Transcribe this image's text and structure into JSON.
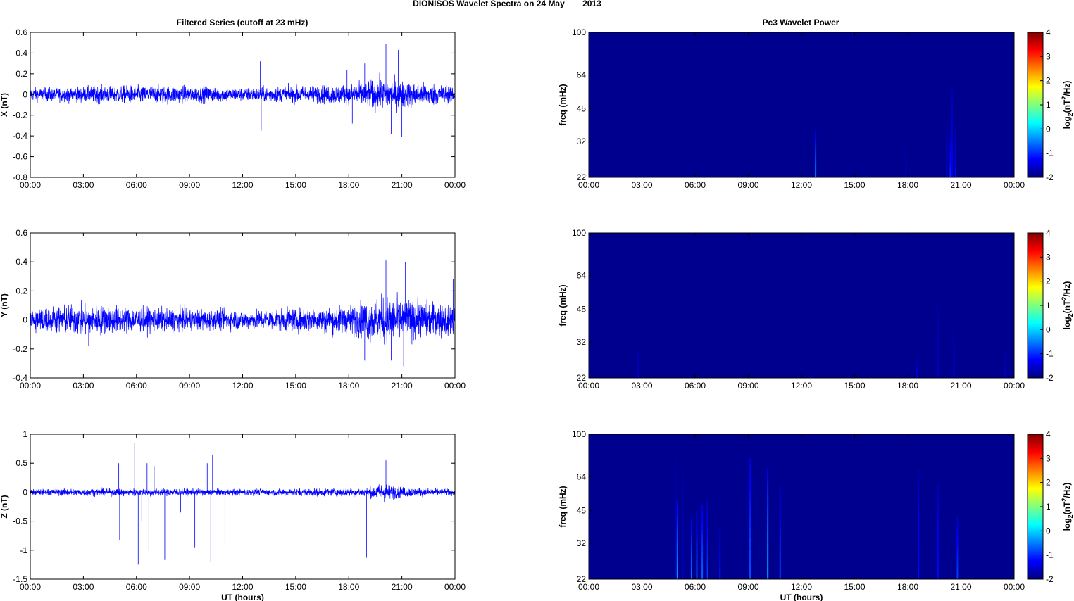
{
  "figure": {
    "title_prefix": "DIONISOS Wavelet Spectra on 24 May",
    "title_year": "2013",
    "left_column_title": "Filtered Series (cutoff at 23 mHz)",
    "right_column_title": "Pc3 Wavelet Power"
  },
  "colors": {
    "series": "#0000ff",
    "spectrum_background": "#00008f",
    "colormap": [
      "#00007f",
      "#0000ff",
      "#007fff",
      "#00ffff",
      "#7fff7f",
      "#ffff00",
      "#ff7f00",
      "#ff0000",
      "#7f0000"
    ]
  },
  "chart_data": [
    {
      "type": "line",
      "title": "Filtered Series (cutoff at 23 mHz)",
      "xlabel": "",
      "ylabel": "X (nT)",
      "x_ticks": [
        "00:00",
        "03:00",
        "06:00",
        "09:00",
        "12:00",
        "15:00",
        "18:00",
        "21:00",
        "00:00"
      ],
      "xlim_hours": [
        0,
        24
      ],
      "ylim": [
        -0.8,
        0.6
      ],
      "y_ticks": [
        "0.6",
        "0.4",
        "0.2",
        "0",
        "-0.2",
        "-0.4",
        "-0.6",
        "-0.8"
      ],
      "noise_envelope": [
        [
          0,
          0.06
        ],
        [
          6,
          0.08
        ],
        [
          8,
          0.08
        ],
        [
          12,
          0.06
        ],
        [
          18,
          0.09
        ],
        [
          20,
          0.15
        ],
        [
          21,
          0.12
        ],
        [
          24,
          0.08
        ]
      ],
      "spikes": [
        [
          13.0,
          0.32
        ],
        [
          13.05,
          -0.35
        ],
        [
          18.9,
          0.3
        ],
        [
          20.1,
          0.49
        ],
        [
          20.4,
          -0.38
        ],
        [
          21.0,
          -0.41
        ],
        [
          17.9,
          0.24
        ],
        [
          20.8,
          0.43
        ],
        [
          18.2,
          -0.28
        ]
      ]
    },
    {
      "type": "line",
      "xlabel": "",
      "ylabel": "Y (nT)",
      "x_ticks": [
        "00:00",
        "03:00",
        "06:00",
        "09:00",
        "12:00",
        "15:00",
        "18:00",
        "21:00",
        "00:00"
      ],
      "xlim_hours": [
        0,
        24
      ],
      "ylim": [
        -0.4,
        0.6
      ],
      "y_ticks": [
        "0.6",
        "0.4",
        "0.2",
        "0",
        "-0.2",
        "-0.4"
      ],
      "noise_envelope": [
        [
          0,
          0.08
        ],
        [
          3,
          0.1
        ],
        [
          6,
          0.08
        ],
        [
          12,
          0.06
        ],
        [
          18,
          0.09
        ],
        [
          20,
          0.15
        ],
        [
          21,
          0.13
        ],
        [
          24,
          0.1
        ]
      ],
      "spikes": [
        [
          20.1,
          0.41
        ],
        [
          21.2,
          0.4
        ],
        [
          20.4,
          -0.28
        ],
        [
          21.1,
          -0.32
        ],
        [
          18.9,
          -0.28
        ],
        [
          23.9,
          0.28
        ],
        [
          3.3,
          -0.18
        ]
      ]
    },
    {
      "type": "line",
      "xlabel": "UT (hours)",
      "ylabel": "Z (nT)",
      "x_ticks": [
        "00:00",
        "03:00",
        "06:00",
        "09:00",
        "12:00",
        "15:00",
        "18:00",
        "21:00",
        "00:00"
      ],
      "xlim_hours": [
        0,
        24
      ],
      "ylim": [
        -1.5,
        1
      ],
      "y_ticks": [
        "1",
        "0.5",
        "0",
        "-0.5",
        "-1",
        "-1.5"
      ],
      "noise_envelope": [
        [
          0,
          0.05
        ],
        [
          5,
          0.06
        ],
        [
          12,
          0.05
        ],
        [
          19,
          0.07
        ],
        [
          20,
          0.15
        ],
        [
          21,
          0.08
        ],
        [
          24,
          0.05
        ]
      ],
      "spikes": [
        [
          5.0,
          0.5
        ],
        [
          5.05,
          -0.82
        ],
        [
          5.9,
          0.85
        ],
        [
          6.1,
          -1.25
        ],
        [
          6.3,
          -0.5
        ],
        [
          6.6,
          0.5
        ],
        [
          6.7,
          -1.0
        ],
        [
          7.0,
          0.45
        ],
        [
          7.6,
          -1.17
        ],
        [
          8.5,
          -0.35
        ],
        [
          9.3,
          -0.95
        ],
        [
          10.2,
          -1.2
        ],
        [
          10.3,
          0.65
        ],
        [
          10.0,
          0.5
        ],
        [
          11.0,
          -0.92
        ],
        [
          19.0,
          -1.13
        ],
        [
          20.1,
          0.55
        ]
      ]
    },
    {
      "type": "heatmap",
      "title": "Pc3 Wavelet Power",
      "xlabel": "",
      "ylabel": "freq (mHz)",
      "colorbar_label_main": "log",
      "colorbar_label_sub": "2",
      "colorbar_label_rest": "(nT",
      "colorbar_label_sup": "2",
      "colorbar_label_end": "/Hz)",
      "x_ticks": [
        "00:00",
        "03:00",
        "06:00",
        "09:00",
        "12:00",
        "15:00",
        "18:00",
        "21:00",
        "00:00"
      ],
      "y_ticks": [
        "100",
        "64",
        "45",
        "32",
        "22"
      ],
      "y_tick_values": [
        100,
        64,
        45,
        32,
        22
      ],
      "ylim": [
        22,
        100
      ],
      "clim": [
        -2,
        4
      ],
      "c_ticks": [
        "4",
        "3",
        "2",
        "1",
        "0",
        "-1",
        "-2"
      ],
      "features": [
        [
          12.8,
          36,
          -0.5
        ],
        [
          20.5,
          55,
          -1.3
        ],
        [
          20.2,
          40,
          -1.4
        ],
        [
          20.4,
          33,
          -1.0
        ],
        [
          20.7,
          38,
          -1.2
        ],
        [
          17.9,
          33,
          -1.6
        ]
      ]
    },
    {
      "type": "heatmap",
      "xlabel": "",
      "ylabel": "freq (mHz)",
      "colorbar_label_main": "log",
      "colorbar_label_sub": "2",
      "colorbar_label_rest": "(nT",
      "colorbar_label_sup": "2",
      "colorbar_label_end": "/Hz)",
      "x_ticks": [
        "00:00",
        "03:00",
        "06:00",
        "09:00",
        "12:00",
        "15:00",
        "18:00",
        "21:00",
        "00:00"
      ],
      "y_ticks": [
        "100",
        "64",
        "45",
        "32",
        "22"
      ],
      "y_tick_values": [
        100,
        64,
        45,
        32,
        22
      ],
      "ylim": [
        22,
        100
      ],
      "clim": [
        -2,
        4
      ],
      "c_ticks": [
        "4",
        "3",
        "2",
        "1",
        "0",
        "-1",
        "-2"
      ],
      "features": [
        [
          2.8,
          30,
          -1.5
        ],
        [
          18.5,
          27,
          -1.3
        ],
        [
          20.6,
          38,
          -1.5
        ],
        [
          19.7,
          50,
          -1.6
        ],
        [
          23.5,
          30,
          -1.5
        ]
      ]
    },
    {
      "type": "heatmap",
      "xlabel": "UT (hours)",
      "ylabel": "freq (mHz)",
      "colorbar_label_main": "log",
      "colorbar_label_sub": "2",
      "colorbar_label_rest": "(nT",
      "colorbar_label_sup": "2",
      "colorbar_label_end": "/Hz)",
      "x_ticks": [
        "00:00",
        "03:00",
        "06:00",
        "09:00",
        "12:00",
        "15:00",
        "18:00",
        "21:00",
        "00:00"
      ],
      "y_ticks": [
        "100",
        "64",
        "45",
        "32",
        "22"
      ],
      "y_tick_values": [
        100,
        64,
        45,
        32,
        22
      ],
      "ylim": [
        22,
        100
      ],
      "clim": [
        -2,
        4
      ],
      "c_ticks": [
        "4",
        "3",
        "2",
        "1",
        "0",
        "-1",
        "-2"
      ],
      "features": [
        [
          5.0,
          50,
          -0.4
        ],
        [
          5.8,
          42,
          -0.6
        ],
        [
          6.1,
          45,
          -0.8
        ],
        [
          6.4,
          48,
          -0.7
        ],
        [
          6.7,
          50,
          -0.9
        ],
        [
          7.4,
          38,
          -1.1
        ],
        [
          9.1,
          78,
          -0.8
        ],
        [
          10.1,
          70,
          -0.3
        ],
        [
          10.8,
          58,
          -0.9
        ],
        [
          18.6,
          70,
          -1.2
        ],
        [
          19.7,
          60,
          -1.2
        ],
        [
          20.8,
          42,
          -0.9
        ],
        [
          4.9,
          80,
          -1.6
        ],
        [
          5.3,
          70,
          -1.6
        ]
      ]
    }
  ]
}
